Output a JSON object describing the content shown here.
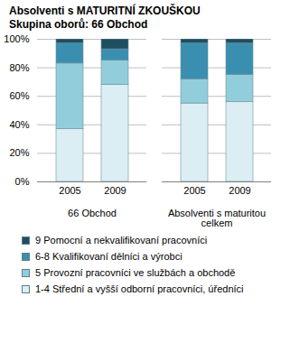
{
  "chart_data": {
    "type": "bar",
    "stacked": true,
    "title": "Absolventi s MATURITNÍ ZKOUŠKOU",
    "subtitle": "Skupina oborů: 66 Obchod",
    "categories": [
      "2005",
      "2009",
      "2005",
      "2009"
    ],
    "groups": [
      "66 Obchod",
      "66 Obchod",
      "Absolventi s maturitou celkem",
      "Absolventi s maturitou celkem"
    ],
    "series": [
      {
        "name": "1-4 Střední a vyšší odborní pracovníci, úředníci",
        "color": "#dbeef4",
        "values": [
          37,
          68,
          55,
          56
        ]
      },
      {
        "name": "5 Provozní pracovníci ve službách a obchodě",
        "color": "#92cddc",
        "values": [
          46,
          17,
          17,
          19
        ]
      },
      {
        "name": "6-8 Kvalifikovaní dělníci a výrobci",
        "color": "#3a8fb0",
        "values": [
          14,
          8,
          25,
          22
        ]
      },
      {
        "name": "9 Pomocní a nekvalifikovaní pracovníci",
        "color": "#1f4e60",
        "values": [
          3,
          7,
          3,
          3
        ]
      }
    ],
    "ylim": [
      0,
      100
    ],
    "yticks": [
      {
        "value": 0,
        "label": "0%"
      },
      {
        "value": 20,
        "label": "20%"
      },
      {
        "value": 40,
        "label": "40%"
      },
      {
        "value": 60,
        "label": "60%"
      },
      {
        "value": 80,
        "label": "80%"
      },
      {
        "value": 100,
        "label": "100%"
      }
    ],
    "grid": true,
    "legend": "bottom"
  }
}
